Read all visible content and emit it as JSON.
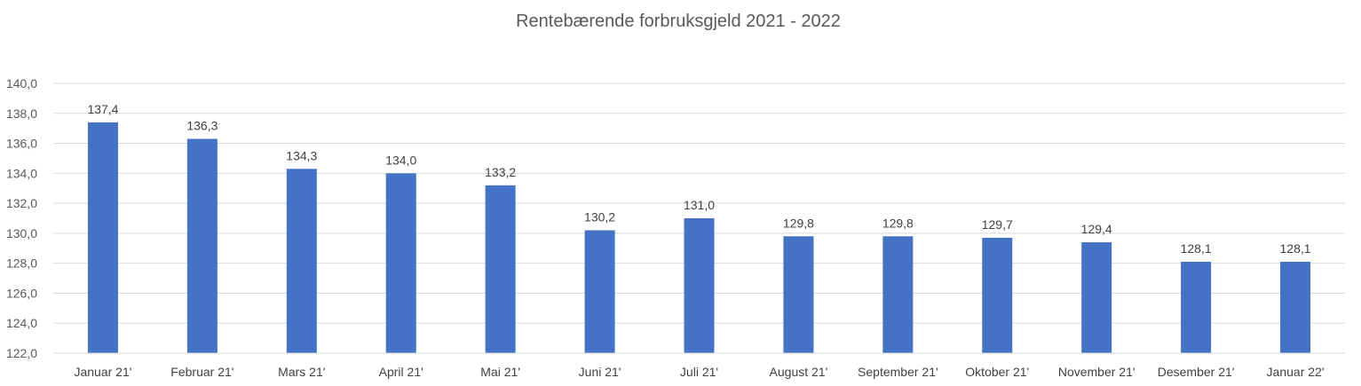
{
  "chart_data": {
    "type": "bar",
    "title": "Rentebærende forbruksgjeld 2021 - 2022",
    "xlabel": "",
    "ylabel": "",
    "categories": [
      "Januar 21'",
      "Februar 21'",
      "Mars 21'",
      "April 21'",
      "Mai 21'",
      "Juni 21'",
      "Juli 21'",
      "August 21'",
      "September 21'",
      "Oktober 21'",
      "November 21'",
      "Desember 21'",
      "Januar 22'"
    ],
    "values": [
      137.4,
      136.3,
      134.3,
      134.0,
      133.2,
      130.2,
      131.0,
      129.8,
      129.8,
      129.7,
      129.4,
      128.1,
      128.1
    ],
    "data_labels": [
      "137,4",
      "136,3",
      "134,3",
      "134,0",
      "133,2",
      "130,2",
      "131,0",
      "129,8",
      "129,8",
      "129,7",
      "129,4",
      "128,1",
      "128,1"
    ],
    "ylim": [
      122,
      140
    ],
    "yticks": [
      122,
      124,
      126,
      128,
      130,
      132,
      134,
      136,
      138,
      140
    ],
    "ytick_labels": [
      "122,0",
      "124,0",
      "126,0",
      "128,0",
      "130,0",
      "132,0",
      "134,0",
      "136,0",
      "138,0",
      "140,0"
    ],
    "grid": true,
    "legend": "none",
    "colors": {
      "bar": "#4472C4",
      "grid": "#D9D9D9",
      "text": "#595959"
    }
  }
}
